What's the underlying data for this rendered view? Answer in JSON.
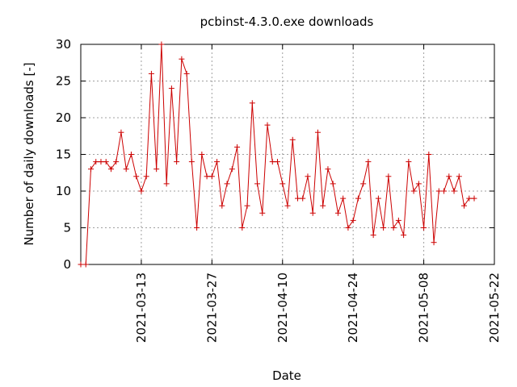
{
  "chart_data": {
    "type": "line",
    "title": "pcbinst-4.3.0.exe downloads",
    "xlabel": "Date",
    "ylabel": "Number of daily downloads [-]",
    "xlim": [
      "2021-03-01",
      "2021-05-22"
    ],
    "ylim": [
      0,
      30
    ],
    "x_ticks": [
      "2021-03-13",
      "2021-03-27",
      "2021-04-10",
      "2021-04-24",
      "2021-05-08",
      "2021-05-22"
    ],
    "y_ticks": [
      0,
      5,
      10,
      15,
      20,
      25,
      30
    ],
    "grid": true,
    "marker": "plus",
    "series_color": "#cc0000",
    "series": [
      {
        "x": [
          "2021-03-01",
          "2021-03-02",
          "2021-03-03",
          "2021-03-04",
          "2021-03-05",
          "2021-03-06",
          "2021-03-07",
          "2021-03-08",
          "2021-03-09",
          "2021-03-10",
          "2021-03-11",
          "2021-03-12",
          "2021-03-13",
          "2021-03-14",
          "2021-03-15",
          "2021-03-16",
          "2021-03-17",
          "2021-03-18",
          "2021-03-19",
          "2021-03-20",
          "2021-03-21",
          "2021-03-22",
          "2021-03-23",
          "2021-03-24",
          "2021-03-25",
          "2021-03-26",
          "2021-03-27",
          "2021-03-28",
          "2021-03-29",
          "2021-03-30",
          "2021-03-31",
          "2021-04-01",
          "2021-04-02",
          "2021-04-03",
          "2021-04-04",
          "2021-04-05",
          "2021-04-06",
          "2021-04-07",
          "2021-04-08",
          "2021-04-09",
          "2021-04-10",
          "2021-04-11",
          "2021-04-12",
          "2021-04-13",
          "2021-04-14",
          "2021-04-15",
          "2021-04-16",
          "2021-04-17",
          "2021-04-18",
          "2021-04-19",
          "2021-04-20",
          "2021-04-21",
          "2021-04-22",
          "2021-04-23",
          "2021-04-24",
          "2021-04-25",
          "2021-04-26",
          "2021-04-27",
          "2021-04-28",
          "2021-04-29",
          "2021-04-30",
          "2021-05-01",
          "2021-05-02",
          "2021-05-03",
          "2021-05-04",
          "2021-05-05",
          "2021-05-06",
          "2021-05-07",
          "2021-05-08",
          "2021-05-09",
          "2021-05-10",
          "2021-05-11",
          "2021-05-12",
          "2021-05-13",
          "2021-05-14",
          "2021-05-15",
          "2021-05-16",
          "2021-05-17",
          "2021-05-18"
        ],
        "values": [
          0,
          0,
          13,
          14,
          14,
          14,
          13,
          14,
          18,
          13,
          15,
          12,
          10,
          12,
          26,
          13,
          30,
          11,
          24,
          14,
          28,
          26,
          14,
          5,
          15,
          12,
          12,
          14,
          8,
          11,
          13,
          16,
          5,
          8,
          22,
          11,
          7,
          19,
          14,
          14,
          11,
          8,
          17,
          9,
          9,
          12,
          7,
          18,
          8,
          13,
          11,
          7,
          9,
          5,
          6,
          9,
          11,
          14,
          4,
          9,
          5,
          12,
          5,
          6,
          4,
          14,
          10,
          11,
          5,
          15,
          3,
          10,
          10,
          12,
          10,
          12,
          8,
          9,
          9
        ]
      }
    ]
  }
}
